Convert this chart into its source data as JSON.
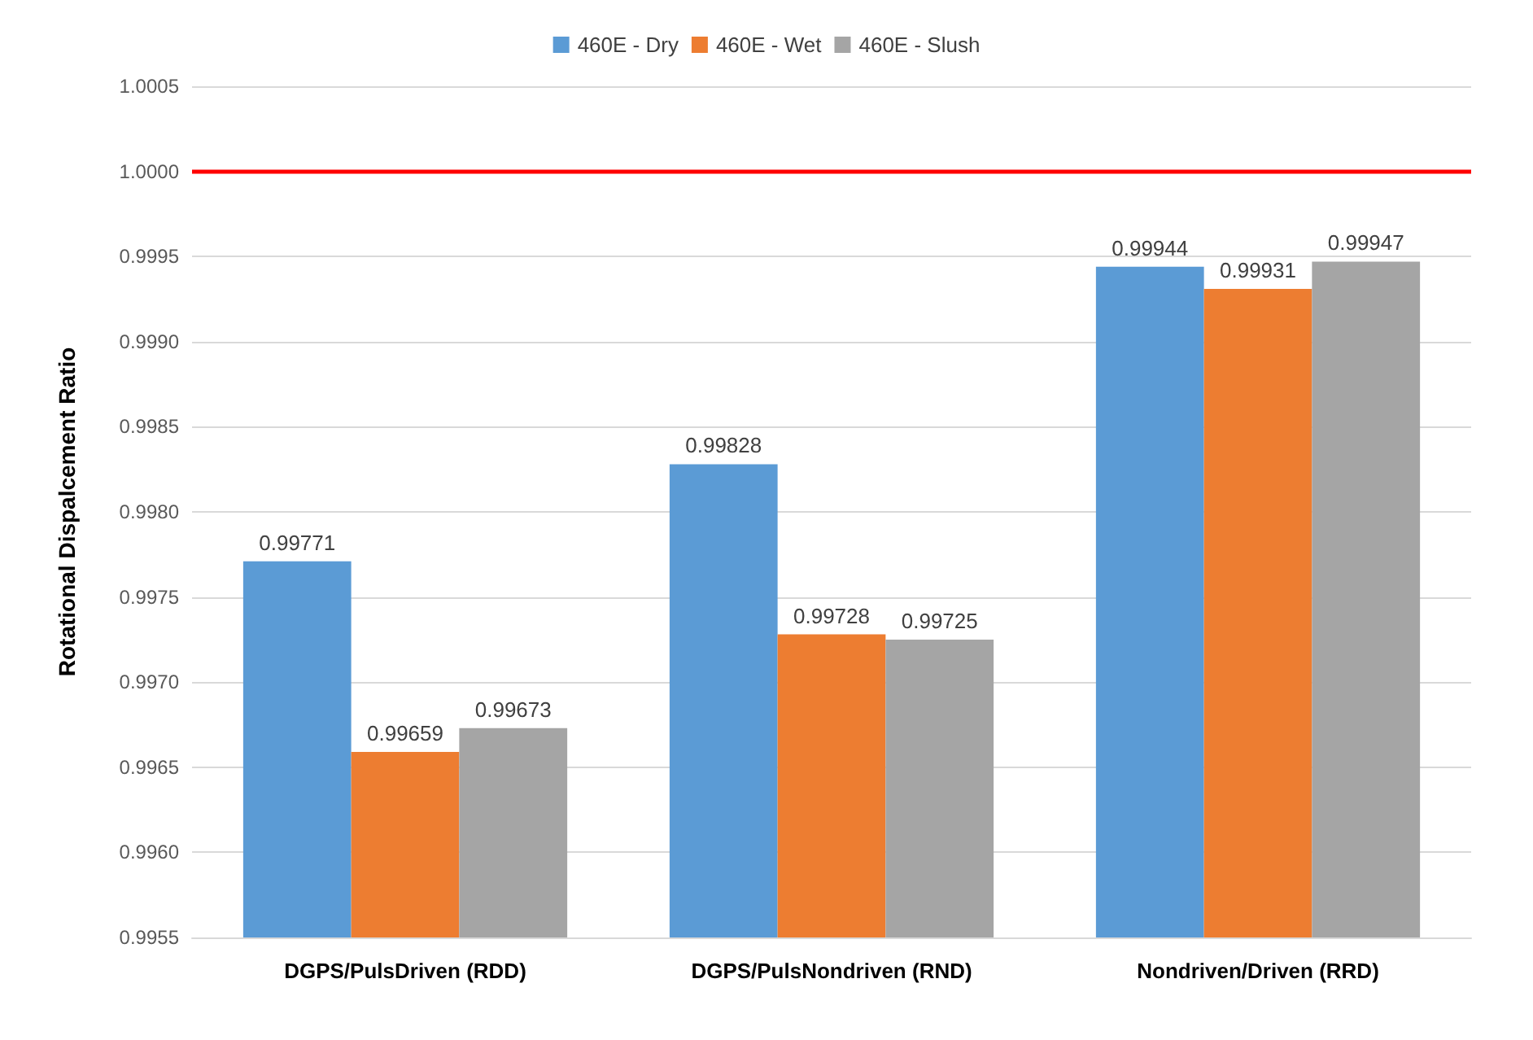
{
  "chart_data": {
    "type": "bar",
    "ylabel": "Rotational Dispalcement Ratio",
    "categories": [
      "DGPS/PulsDriven (RDD)",
      "DGPS/PulsNondriven (RND)",
      "Nondriven/Driven (RRD)"
    ],
    "series": [
      {
        "name": "460E - Dry",
        "color": "#5b9bd5",
        "values": [
          0.99771,
          0.99828,
          0.99944
        ]
      },
      {
        "name": "460E - Wet",
        "color": "#ed7d31",
        "values": [
          0.99659,
          0.99728,
          0.99931
        ]
      },
      {
        "name": "460E - Slush",
        "color": "#a5a5a5",
        "values": [
          0.99673,
          0.99725,
          0.99947
        ]
      }
    ],
    "ylim": [
      0.9955,
      1.0005
    ],
    "yticks": [
      0.9955,
      {
        "value": 0.996,
        "label": "0.9960"
      },
      0.9965,
      {
        "value": 0.997,
        "label": "0.9970"
      },
      0.9975,
      {
        "value": 0.998,
        "label": "0.9980"
      },
      0.9985,
      {
        "value": 0.999,
        "label": "0.9990"
      },
      0.9995,
      {
        "value": 1,
        "label": "1.0000"
      },
      1.0005
    ],
    "ref_lines": [
      {
        "axis": "y",
        "value": 1,
        "color": "#ff0000",
        "line_style": "solid"
      }
    ],
    "grid": "y",
    "legend": "top",
    "data_labels": true
  }
}
